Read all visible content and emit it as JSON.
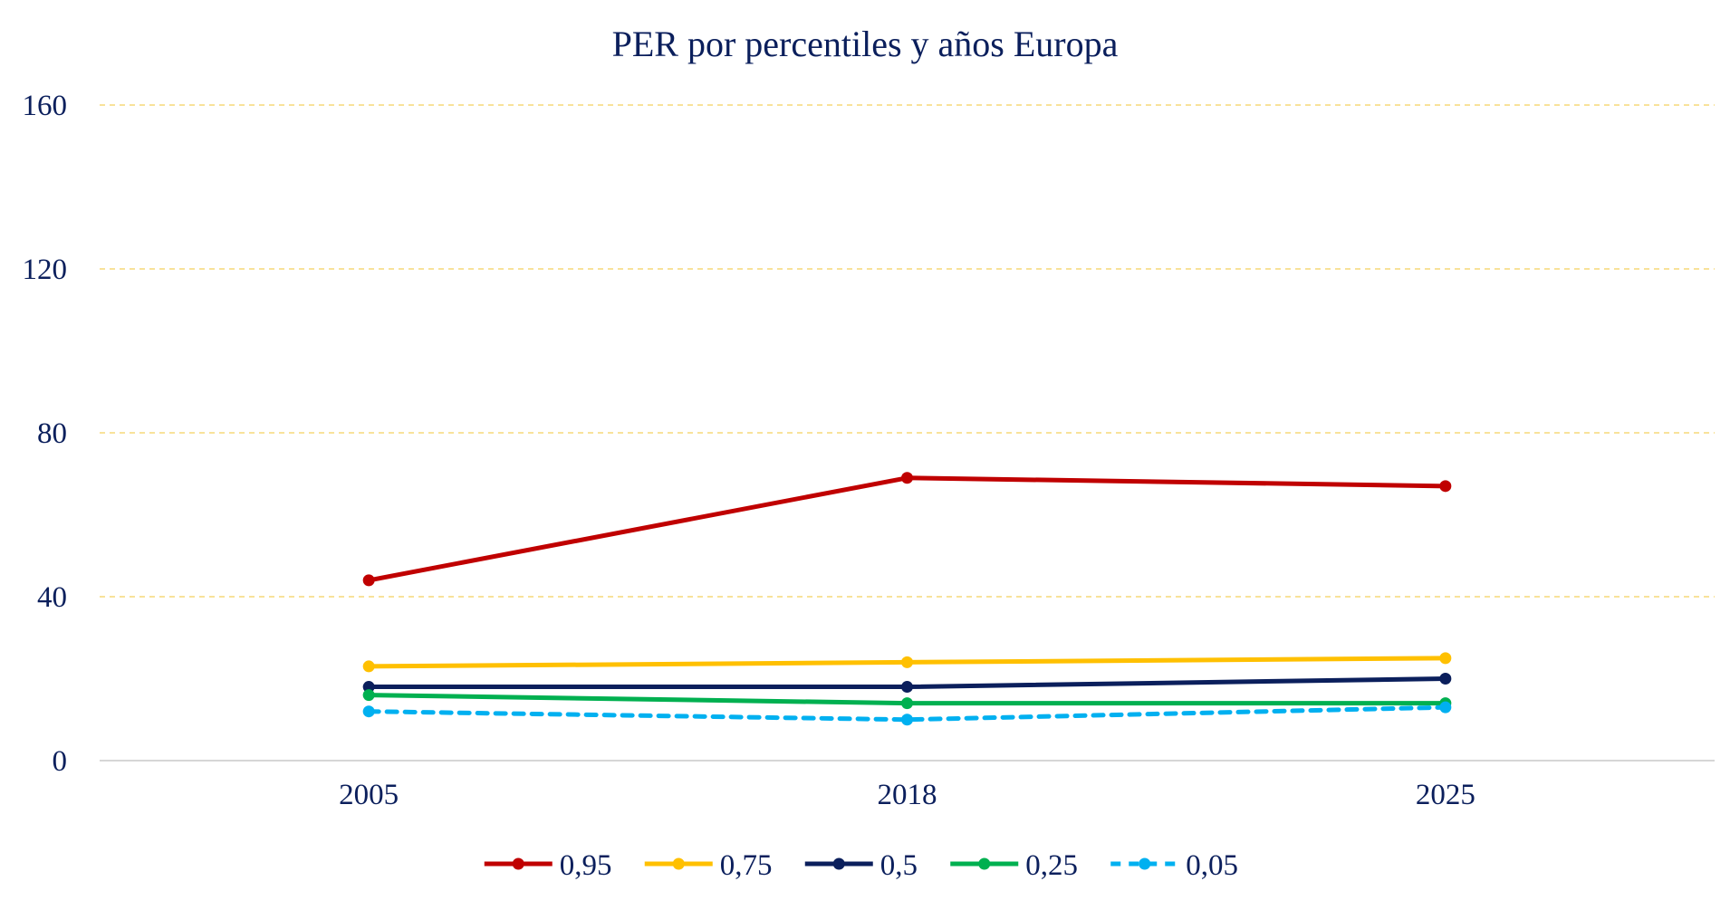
{
  "chart_data": {
    "type": "line",
    "title": "PER por percentiles y años Europa",
    "xlabel": "",
    "ylabel": "",
    "categories": [
      "2005",
      "2018",
      "2025"
    ],
    "ylim": [
      0,
      160
    ],
    "yticks": [
      0,
      40,
      80,
      120,
      160
    ],
    "grid": true,
    "legend_position": "bottom",
    "colors": {
      "text": "#0B1F5C",
      "grid": "#F5D978",
      "axis": "#C8C8C8"
    },
    "series": [
      {
        "name": "0,95",
        "values": [
          44,
          69,
          67
        ],
        "color": "#C00000",
        "dashed": false
      },
      {
        "name": "0,75",
        "values": [
          23,
          24,
          25
        ],
        "color": "#FFC000",
        "dashed": false
      },
      {
        "name": "0,5",
        "values": [
          18,
          18,
          20
        ],
        "color": "#0B1F5C",
        "dashed": false
      },
      {
        "name": "0,25",
        "values": [
          16,
          14,
          14
        ],
        "color": "#00B050",
        "dashed": false
      },
      {
        "name": "0,05",
        "values": [
          12,
          10,
          13
        ],
        "color": "#00B0F0",
        "dashed": true
      }
    ]
  }
}
